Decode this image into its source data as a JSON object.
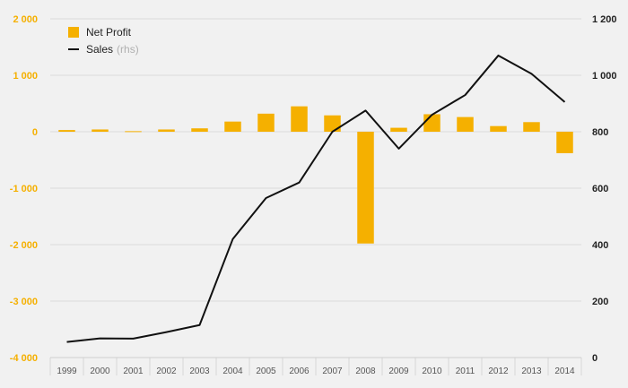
{
  "chart_data": {
    "type": "bar+line",
    "categories": [
      "1999",
      "2000",
      "2001",
      "2002",
      "2003",
      "2004",
      "2005",
      "2006",
      "2007",
      "2008",
      "2009",
      "2010",
      "2011",
      "2012",
      "2013",
      "2014"
    ],
    "series": [
      {
        "name": "Net Profit",
        "type": "bar",
        "axis": "left",
        "color": "#f5b000",
        "values": [
          30,
          40,
          10,
          40,
          60,
          180,
          320,
          450,
          290,
          -1980,
          70,
          310,
          260,
          100,
          170,
          -380
        ]
      },
      {
        "name": "Sales",
        "name_suffix": "(rhs)",
        "type": "line",
        "axis": "right",
        "color": "#111111",
        "values": [
          55,
          68,
          67,
          90,
          115,
          420,
          565,
          620,
          800,
          875,
          740,
          860,
          930,
          1070,
          1005,
          905
        ]
      }
    ],
    "left_axis": {
      "ylim": [
        -4000,
        2000
      ],
      "ticks": [
        2000,
        1000,
        0,
        -1000,
        -2000,
        -3000,
        -4000
      ],
      "tick_labels": [
        "2 000",
        "1 000",
        "0",
        "-1 000",
        "-2 000",
        "-3 000",
        "-4 000"
      ],
      "color": "#f5b000"
    },
    "right_axis": {
      "ylim": [
        0,
        1200
      ],
      "ticks": [
        1200,
        1000,
        800,
        600,
        400,
        200,
        0
      ],
      "tick_labels": [
        "1 200",
        "1 000",
        "800",
        "600",
        "400",
        "200",
        "0"
      ],
      "color": "#222222"
    },
    "grid": true,
    "legend": "top-left",
    "title": "",
    "xlabel": "",
    "ylabel": ""
  }
}
